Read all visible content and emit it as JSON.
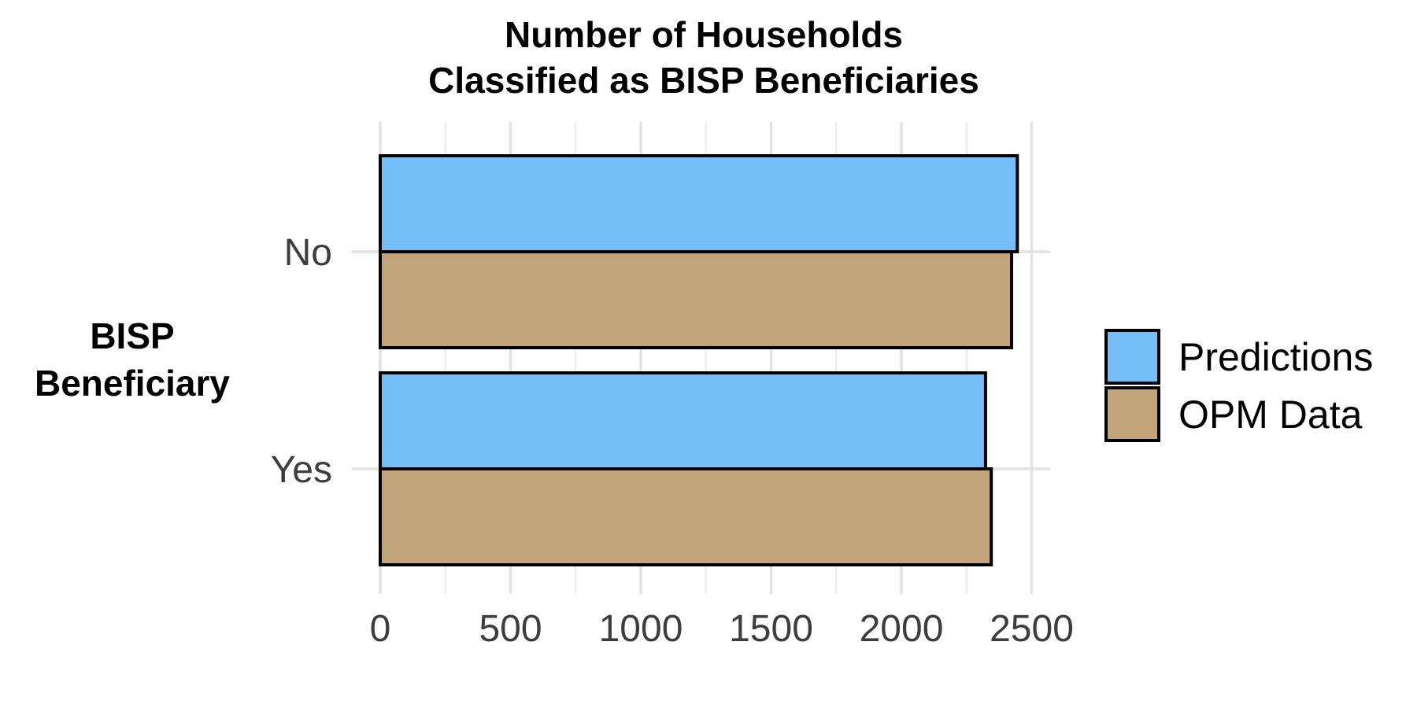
{
  "chart_data": {
    "type": "bar",
    "orientation": "horizontal",
    "title": [
      "Number of Households",
      "Classified as BISP Beneficiaries"
    ],
    "xlabel": "",
    "ylabel": [
      "BISP",
      "Beneficiary"
    ],
    "categories": [
      "No",
      "Yes"
    ],
    "series": [
      {
        "name": "Predictions",
        "color": "#74bff7",
        "values": [
          2445,
          2323
        ]
      },
      {
        "name": "OPM Data",
        "color": "#c2a47a",
        "values": [
          2423,
          2345
        ]
      }
    ],
    "xlim": [
      0,
      2500
    ],
    "xticks": [
      0,
      500,
      1000,
      1500,
      2000,
      2500
    ],
    "grid": true,
    "legend_position": "right"
  }
}
